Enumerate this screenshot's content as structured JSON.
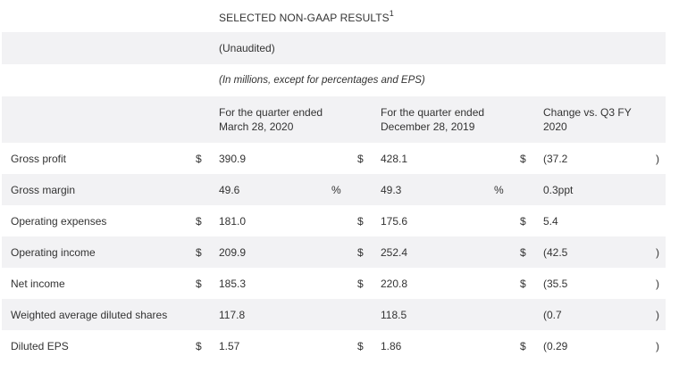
{
  "header": {
    "title": "SELECTED NON-GAAP RESULTS",
    "footnote_marker": "1",
    "subtitle": "(Unaudited)",
    "units_note": "(In millions, except for percentages and EPS)"
  },
  "columns": {
    "q1_line1": "For the quarter ended",
    "q1_line2": "March 28, 2020",
    "q2_line1": "For the quarter ended",
    "q2_line2": "December 28, 2019",
    "chg_line1": "Change vs. Q3 FY",
    "chg_line2": "2020"
  },
  "rows": [
    {
      "label": "Gross profit",
      "c1_sym": "$",
      "c1": "390.9",
      "c1_suffix": "",
      "c2_sym": "$",
      "c2": "428.1",
      "c2_suffix": "",
      "c3_sym": "$",
      "c3": "(37.2",
      "c3_close": ")"
    },
    {
      "label": "Gross margin",
      "c1_sym": "",
      "c1": "49.6",
      "c1_suffix": "%",
      "c2_sym": "",
      "c2": "49.3",
      "c2_suffix": "%",
      "c3_sym": "",
      "c3": "0.3ppt",
      "c3_close": ""
    },
    {
      "label": "Operating expenses",
      "c1_sym": "$",
      "c1": "181.0",
      "c1_suffix": "",
      "c2_sym": "$",
      "c2": "175.6",
      "c2_suffix": "",
      "c3_sym": "$",
      "c3": "5.4",
      "c3_close": ""
    },
    {
      "label": "Operating income",
      "c1_sym": "$",
      "c1": "209.9",
      "c1_suffix": "",
      "c2_sym": "$",
      "c2": "252.4",
      "c2_suffix": "",
      "c3_sym": "$",
      "c3": "(42.5",
      "c3_close": ")"
    },
    {
      "label": "Net income",
      "c1_sym": "$",
      "c1": "185.3",
      "c1_suffix": "",
      "c2_sym": "$",
      "c2": "220.8",
      "c2_suffix": "",
      "c3_sym": "$",
      "c3": "(35.5",
      "c3_close": ")"
    },
    {
      "label": "Weighted average diluted shares",
      "c1_sym": "",
      "c1": "117.8",
      "c1_suffix": "",
      "c2_sym": "",
      "c2": "118.5",
      "c2_suffix": "",
      "c3_sym": "",
      "c3": "(0.7",
      "c3_close": ")"
    },
    {
      "label": "Diluted EPS",
      "c1_sym": "$",
      "c1": "1.57",
      "c1_suffix": "",
      "c2_sym": "$",
      "c2": "1.86",
      "c2_suffix": "",
      "c3_sym": "$",
      "c3": "(0.29",
      "c3_close": ")"
    }
  ]
}
